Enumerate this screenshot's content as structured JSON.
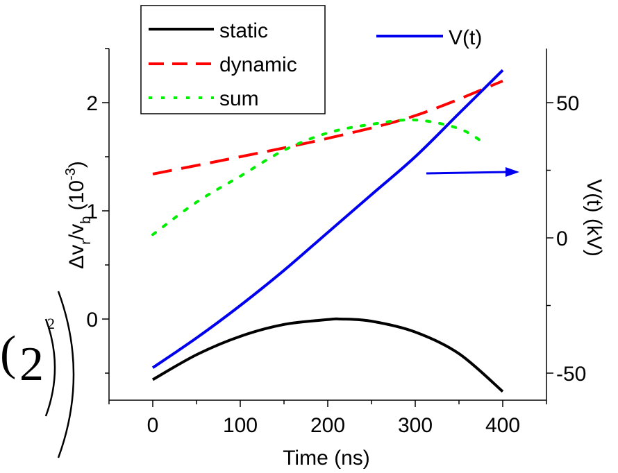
{
  "chart_data": {
    "type": "line",
    "x_label": "Time (ns)",
    "y_label_left": {
      "base": "Δv",
      "sub1": "r",
      "mid": "/v",
      "sub2": "b",
      "tail": " (10",
      "sup": "-3",
      "close": ")"
    },
    "y_label_right": "V(t) (kV)",
    "xlim": [
      -50,
      450
    ],
    "ylim_left": [
      -0.75,
      2.5
    ],
    "ylim_right": [
      -60,
      70
    ],
    "x_ticks": [
      0,
      100,
      200,
      300,
      400
    ],
    "x_tick_labels": [
      "0",
      "100",
      "200",
      "300",
      "400"
    ],
    "y_left_ticks": [
      0,
      1,
      2
    ],
    "y_left_tick_labels": [
      "0",
      "1",
      "2"
    ],
    "y_right_ticks": [
      -50,
      0,
      50
    ],
    "y_right_tick_labels": [
      "-50",
      "0",
      "50"
    ],
    "legend_left": [
      "static",
      "dynamic",
      "sum"
    ],
    "legend_right": [
      "V(t)"
    ],
    "series": [
      {
        "name": "static",
        "axis": "left",
        "color": "#000000",
        "dash": "solid",
        "x": [
          0,
          50,
          100,
          150,
          200,
          215,
          250,
          300,
          350,
          400
        ],
        "y": [
          -0.56,
          -0.33,
          -0.16,
          -0.05,
          -0.005,
          0.0,
          -0.02,
          -0.12,
          -0.32,
          -0.67
        ]
      },
      {
        "name": "dynamic",
        "axis": "left",
        "color": "#ff0000",
        "dash": "dashed",
        "x": [
          0,
          100,
          200,
          300,
          400
        ],
        "y": [
          1.34,
          1.5,
          1.67,
          1.88,
          2.2
        ]
      },
      {
        "name": "sum",
        "axis": "left",
        "color": "#00ee00",
        "dash": "dotted",
        "x": [
          0,
          50,
          100,
          150,
          200,
          250,
          300,
          350,
          380
        ],
        "y": [
          0.78,
          1.08,
          1.32,
          1.56,
          1.72,
          1.8,
          1.84,
          1.76,
          1.62
        ]
      },
      {
        "name": "V(t)",
        "axis": "right",
        "color": "#0000ee",
        "dash": "solid",
        "x": [
          0,
          50,
          100,
          150,
          200,
          250,
          300,
          350,
          400
        ],
        "y": [
          -48,
          -37,
          -25,
          -12,
          2,
          16,
          30,
          46,
          62
        ]
      }
    ],
    "annotation": {
      "text": "arrow pointing to right axis",
      "color": "#0000ee"
    },
    "colors": {
      "static": "#000000",
      "dynamic": "#ff0000",
      "sum": "#00ee00",
      "vt": "#0000ee"
    }
  }
}
